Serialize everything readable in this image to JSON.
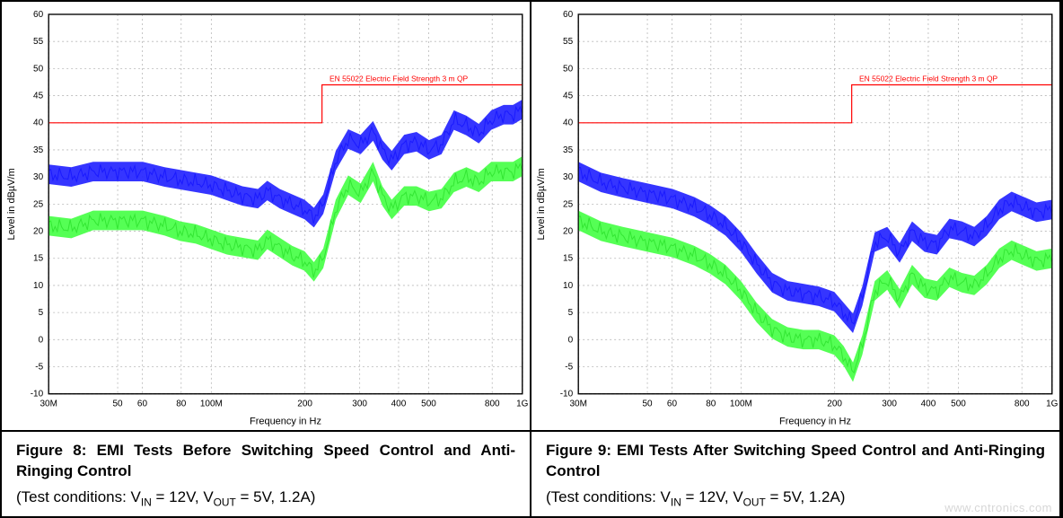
{
  "watermark_text": "www.cntronics.com",
  "watermark_color": "#d7d7d7",
  "figures": [
    {
      "id": "fig8",
      "caption_title": "Figure 8: EMI Tests Before Switching Speed Control and Anti-Ringing Control",
      "caption_sub_prefix": "(Test conditions: V",
      "caption_sub_in": "IN",
      "caption_sub_mid": " = 12V, V",
      "caption_sub_out": "OUT",
      "caption_sub_suffix": " = 5V, 1.2A)",
      "chart": {
        "type": "line",
        "background_color": "#ffffff",
        "plot_background": "#ffffff",
        "border_color": "#000000",
        "grid_color": "#b8b8b8",
        "grid_dash": "2,3",
        "axis_color": "#000000",
        "xlabel": "Frequency in Hz",
        "ylabel": "Level in dBµV/m",
        "xlabel_fontsize": 11,
        "ylabel_fontsize": 11,
        "label_color": "#000000",
        "tick_fontsize": 10,
        "tick_color": "#000000",
        "x_scale": "log",
        "x_log_base": 10,
        "x_domain_log": [
          7.477,
          9.0
        ],
        "x_ticks": [
          {
            "v": 7.477121,
            "label": "30M"
          },
          {
            "v": 7.69897,
            "label": "50"
          },
          {
            "v": 7.778151,
            "label": "60"
          },
          {
            "v": 7.90309,
            "label": "80"
          },
          {
            "v": 8.0,
            "label": "100M"
          },
          {
            "v": 8.30103,
            "label": "200"
          },
          {
            "v": 8.477121,
            "label": "300"
          },
          {
            "v": 8.60206,
            "label": "400"
          },
          {
            "v": 8.69897,
            "label": "500"
          },
          {
            "v": 8.90309,
            "label": "800"
          },
          {
            "v": 9.0,
            "label": "1G"
          }
        ],
        "y_domain": [
          -10,
          60
        ],
        "y_ticks": [
          -10,
          -5,
          0,
          5,
          10,
          15,
          20,
          25,
          30,
          35,
          40,
          45,
          50,
          55,
          60
        ],
        "limit_line": {
          "color": "#ff0000",
          "width": 1.2,
          "label": "EN 55022 Electric Field Strength 3 m QP",
          "label_color": "#ff0000",
          "label_fontsize": 8.5,
          "points_xlog_y": [
            [
              7.477,
              40
            ],
            [
              8.356,
              40
            ],
            [
              8.356,
              47
            ],
            [
              9.0,
              47
            ]
          ]
        },
        "series": [
          {
            "name": "trace-blue",
            "color": "#1a1aff",
            "fill_band_color": "#2a2aff",
            "band_half": 1.8,
            "line_width": 1.0,
            "points_xlog_y": [
              [
                7.477,
                30.5
              ],
              [
                7.55,
                30.0
              ],
              [
                7.62,
                31.0
              ],
              [
                7.7,
                31.0
              ],
              [
                7.78,
                31.0
              ],
              [
                7.85,
                30.0
              ],
              [
                7.9,
                29.5
              ],
              [
                7.95,
                29.0
              ],
              [
                8.0,
                28.5
              ],
              [
                8.05,
                27.5
              ],
              [
                8.1,
                26.5
              ],
              [
                8.15,
                26.0
              ],
              [
                8.18,
                27.5
              ],
              [
                8.22,
                26.0
              ],
              [
                8.26,
                25.0
              ],
              [
                8.3,
                24.0
              ],
              [
                8.33,
                22.5
              ],
              [
                8.36,
                25.0
              ],
              [
                8.4,
                33.0
              ],
              [
                8.44,
                37.0
              ],
              [
                8.48,
                36.0
              ],
              [
                8.52,
                38.5
              ],
              [
                8.55,
                35.0
              ],
              [
                8.58,
                33.0
              ],
              [
                8.62,
                36.0
              ],
              [
                8.66,
                36.5
              ],
              [
                8.7,
                35.0
              ],
              [
                8.74,
                36.0
              ],
              [
                8.78,
                40.5
              ],
              [
                8.82,
                39.5
              ],
              [
                8.86,
                38.0
              ],
              [
                8.9,
                40.5
              ],
              [
                8.94,
                41.5
              ],
              [
                8.97,
                41.5
              ],
              [
                9.0,
                42.5
              ]
            ]
          },
          {
            "name": "trace-green",
            "color": "#33e633",
            "fill_band_color": "#4cff4c",
            "band_half": 1.8,
            "line_width": 1.0,
            "points_xlog_y": [
              [
                7.477,
                21.0
              ],
              [
                7.55,
                20.5
              ],
              [
                7.62,
                22.0
              ],
              [
                7.7,
                22.0
              ],
              [
                7.78,
                22.0
              ],
              [
                7.85,
                21.0
              ],
              [
                7.9,
                20.0
              ],
              [
                7.95,
                19.5
              ],
              [
                8.0,
                18.5
              ],
              [
                8.05,
                17.5
              ],
              [
                8.1,
                17.0
              ],
              [
                8.15,
                16.5
              ],
              [
                8.18,
                18.5
              ],
              [
                8.22,
                17.0
              ],
              [
                8.26,
                15.5
              ],
              [
                8.3,
                14.5
              ],
              [
                8.33,
                12.5
              ],
              [
                8.36,
                15.0
              ],
              [
                8.4,
                24.0
              ],
              [
                8.44,
                28.5
              ],
              [
                8.48,
                27.0
              ],
              [
                8.52,
                31.0
              ],
              [
                8.55,
                26.5
              ],
              [
                8.58,
                24.0
              ],
              [
                8.62,
                26.5
              ],
              [
                8.66,
                26.5
              ],
              [
                8.7,
                25.5
              ],
              [
                8.74,
                26.0
              ],
              [
                8.78,
                29.0
              ],
              [
                8.82,
                30.0
              ],
              [
                8.86,
                29.0
              ],
              [
                8.9,
                31.0
              ],
              [
                8.94,
                31.0
              ],
              [
                8.97,
                31.0
              ],
              [
                9.0,
                32.0
              ]
            ]
          }
        ]
      }
    },
    {
      "id": "fig9",
      "caption_title": "Figure 9: EMI Tests After Switching Speed Control and Anti-Ringing Control",
      "caption_sub_prefix": "(Test conditions: V",
      "caption_sub_in": "IN",
      "caption_sub_mid": " = 12V, V",
      "caption_sub_out": "OUT",
      "caption_sub_suffix": " = 5V, 1.2A)",
      "chart": {
        "type": "line",
        "background_color": "#ffffff",
        "plot_background": "#ffffff",
        "border_color": "#000000",
        "grid_color": "#b8b8b8",
        "grid_dash": "2,3",
        "axis_color": "#000000",
        "xlabel": "Frequency in Hz",
        "ylabel": "Level in dBµV/m",
        "xlabel_fontsize": 11,
        "ylabel_fontsize": 11,
        "label_color": "#000000",
        "tick_fontsize": 10,
        "tick_color": "#000000",
        "x_scale": "log",
        "x_log_base": 10,
        "x_domain_log": [
          7.477,
          9.0
        ],
        "x_ticks": [
          {
            "v": 7.477121,
            "label": "30M"
          },
          {
            "v": 7.69897,
            "label": "50"
          },
          {
            "v": 7.778151,
            "label": "60"
          },
          {
            "v": 7.90309,
            "label": "80"
          },
          {
            "v": 8.0,
            "label": "100M"
          },
          {
            "v": 8.30103,
            "label": "200"
          },
          {
            "v": 8.477121,
            "label": "300"
          },
          {
            "v": 8.60206,
            "label": "400"
          },
          {
            "v": 8.69897,
            "label": "500"
          },
          {
            "v": 8.90309,
            "label": "800"
          },
          {
            "v": 9.0,
            "label": "1G"
          }
        ],
        "y_domain": [
          -10,
          60
        ],
        "y_ticks": [
          -10,
          -5,
          0,
          5,
          10,
          15,
          20,
          25,
          30,
          35,
          40,
          45,
          50,
          55,
          60
        ],
        "limit_line": {
          "color": "#ff0000",
          "width": 1.2,
          "label": "EN 55022 Electric Field Strength 3 m QP",
          "label_color": "#ff0000",
          "label_fontsize": 8.5,
          "points_xlog_y": [
            [
              7.477,
              40
            ],
            [
              8.356,
              40
            ],
            [
              8.356,
              47
            ],
            [
              9.0,
              47
            ]
          ]
        },
        "series": [
          {
            "name": "trace-blue",
            "color": "#1a1aff",
            "fill_band_color": "#2a2aff",
            "band_half": 1.8,
            "line_width": 1.0,
            "points_xlog_y": [
              [
                7.477,
                31.0
              ],
              [
                7.55,
                29.0
              ],
              [
                7.62,
                28.0
              ],
              [
                7.7,
                27.0
              ],
              [
                7.78,
                26.0
              ],
              [
                7.85,
                24.5
              ],
              [
                7.9,
                23.0
              ],
              [
                7.95,
                21.0
              ],
              [
                8.0,
                18.0
              ],
              [
                8.05,
                14.0
              ],
              [
                8.1,
                10.5
              ],
              [
                8.15,
                9.0
              ],
              [
                8.2,
                8.5
              ],
              [
                8.25,
                8.0
              ],
              [
                8.3,
                7.0
              ],
              [
                8.33,
                5.0
              ],
              [
                8.36,
                3.0
              ],
              [
                8.39,
                8.0
              ],
              [
                8.43,
                18.0
              ],
              [
                8.47,
                19.0
              ],
              [
                8.51,
                16.0
              ],
              [
                8.55,
                20.0
              ],
              [
                8.59,
                18.0
              ],
              [
                8.63,
                17.5
              ],
              [
                8.67,
                20.5
              ],
              [
                8.71,
                20.0
              ],
              [
                8.75,
                19.0
              ],
              [
                8.79,
                21.0
              ],
              [
                8.83,
                24.0
              ],
              [
                8.87,
                25.5
              ],
              [
                8.91,
                24.5
              ],
              [
                8.95,
                23.5
              ],
              [
                9.0,
                24.0
              ]
            ]
          },
          {
            "name": "trace-green",
            "color": "#33e633",
            "fill_band_color": "#4cff4c",
            "band_half": 1.8,
            "line_width": 1.0,
            "points_xlog_y": [
              [
                7.477,
                22.0
              ],
              [
                7.55,
                20.0
              ],
              [
                7.62,
                19.0
              ],
              [
                7.7,
                18.0
              ],
              [
                7.78,
                17.0
              ],
              [
                7.85,
                15.5
              ],
              [
                7.9,
                14.0
              ],
              [
                7.95,
                12.0
              ],
              [
                8.0,
                9.0
              ],
              [
                8.05,
                5.0
              ],
              [
                8.1,
                2.0
              ],
              [
                8.15,
                0.5
              ],
              [
                8.2,
                0.0
              ],
              [
                8.25,
                0.0
              ],
              [
                8.3,
                -1.0
              ],
              [
                8.33,
                -3.0
              ],
              [
                8.36,
                -6.0
              ],
              [
                8.39,
                -1.0
              ],
              [
                8.43,
                9.0
              ],
              [
                8.47,
                11.0
              ],
              [
                8.51,
                7.5
              ],
              [
                8.55,
                12.0
              ],
              [
                8.59,
                9.5
              ],
              [
                8.63,
                9.0
              ],
              [
                8.67,
                11.5
              ],
              [
                8.71,
                10.5
              ],
              [
                8.75,
                10.0
              ],
              [
                8.79,
                12.0
              ],
              [
                8.83,
                15.0
              ],
              [
                8.87,
                16.5
              ],
              [
                8.91,
                15.5
              ],
              [
                8.95,
                14.5
              ],
              [
                9.0,
                15.0
              ]
            ]
          }
        ]
      }
    }
  ]
}
